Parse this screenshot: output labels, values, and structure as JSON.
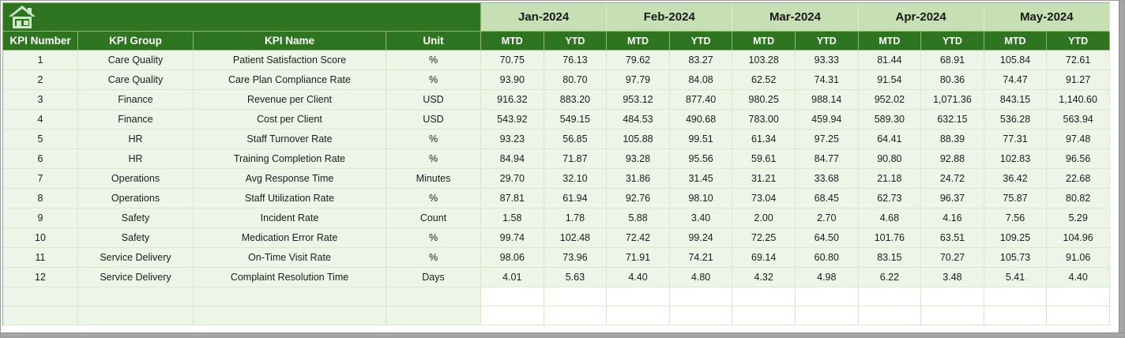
{
  "colors": {
    "dark_green": "#2f7421",
    "light_green_header": "#c6e0b4",
    "row_bg": "#edf4e8",
    "grid_border": "#d9e7cc",
    "header_border": "#8fba74",
    "edge_gray": "#a6a6a6",
    "home_icon": "#cde8c9",
    "header_text": "#ffffff",
    "data_text": "#1c1c1c"
  },
  "table": {
    "left_headers": [
      "KPI Number",
      "KPI Group",
      "KPI Name",
      "Unit"
    ],
    "months": [
      "Jan-2024",
      "Feb-2024",
      "Mar-2024",
      "Apr-2024",
      "May-2024"
    ],
    "sub_headers": [
      "MTD",
      "YTD"
    ],
    "rows": [
      {
        "number": "1",
        "group": "Care Quality",
        "name": "Patient Satisfaction Score",
        "unit": "%",
        "values": [
          "70.75",
          "76.13",
          "79.62",
          "83.27",
          "103.28",
          "93.33",
          "81.44",
          "68.91",
          "105.84",
          "72.61"
        ]
      },
      {
        "number": "2",
        "group": "Care Quality",
        "name": "Care Plan Compliance Rate",
        "unit": "%",
        "values": [
          "93.90",
          "80.70",
          "97.79",
          "84.08",
          "62.52",
          "74.31",
          "91.54",
          "80.36",
          "74.47",
          "91.27"
        ]
      },
      {
        "number": "3",
        "group": "Finance",
        "name": "Revenue per Client",
        "unit": "USD",
        "values": [
          "916.32",
          "883.20",
          "953.12",
          "877.40",
          "980.25",
          "988.14",
          "952.02",
          "1,071.36",
          "843.15",
          "1,140.60"
        ]
      },
      {
        "number": "4",
        "group": "Finance",
        "name": "Cost per Client",
        "unit": "USD",
        "values": [
          "543.92",
          "549.15",
          "484.53",
          "490.68",
          "783.00",
          "459.94",
          "589.30",
          "632.15",
          "536.28",
          "563.94"
        ]
      },
      {
        "number": "5",
        "group": "HR",
        "name": "Staff Turnover Rate",
        "unit": "%",
        "values": [
          "93.23",
          "56.85",
          "105.88",
          "99.51",
          "61.34",
          "97.25",
          "64.41",
          "88.39",
          "77.31",
          "97.48"
        ]
      },
      {
        "number": "6",
        "group": "HR",
        "name": "Training Completion Rate",
        "unit": "%",
        "values": [
          "84.94",
          "71.87",
          "93.28",
          "95.56",
          "59.61",
          "84.77",
          "90.80",
          "92.88",
          "102.83",
          "96.56"
        ]
      },
      {
        "number": "7",
        "group": "Operations",
        "name": "Avg Response Time",
        "unit": "Minutes",
        "values": [
          "29.70",
          "32.10",
          "31.86",
          "31.45",
          "31.21",
          "33.68",
          "21.18",
          "24.72",
          "36.42",
          "22.68"
        ]
      },
      {
        "number": "8",
        "group": "Operations",
        "name": "Staff Utilization Rate",
        "unit": "%",
        "values": [
          "87.81",
          "61.94",
          "92.76",
          "98.10",
          "73.04",
          "68.45",
          "62.73",
          "96.37",
          "75.87",
          "80.82"
        ]
      },
      {
        "number": "9",
        "group": "Safety",
        "name": "Incident Rate",
        "unit": "Count",
        "values": [
          "1.58",
          "1.78",
          "5.88",
          "3.40",
          "2.00",
          "2.70",
          "4.68",
          "4.16",
          "7.56",
          "5.29"
        ]
      },
      {
        "number": "10",
        "group": "Safety",
        "name": "Medication Error Rate",
        "unit": "%",
        "values": [
          "99.74",
          "102.48",
          "72.42",
          "99.24",
          "72.25",
          "64.50",
          "101.76",
          "63.51",
          "109.25",
          "104.96"
        ]
      },
      {
        "number": "11",
        "group": "Service Delivery",
        "name": "On-Time Visit Rate",
        "unit": "%",
        "values": [
          "98.06",
          "73.96",
          "71.91",
          "74.21",
          "69.14",
          "60.80",
          "83.15",
          "70.27",
          "105.73",
          "91.06"
        ]
      },
      {
        "number": "12",
        "group": "Service Delivery",
        "name": "Complaint Resolution Time",
        "unit": "Days",
        "values": [
          "4.01",
          "5.63",
          "4.40",
          "4.80",
          "4.32",
          "4.98",
          "6.22",
          "3.48",
          "5.41",
          "4.40"
        ]
      }
    ],
    "empty_row_count": 2
  }
}
